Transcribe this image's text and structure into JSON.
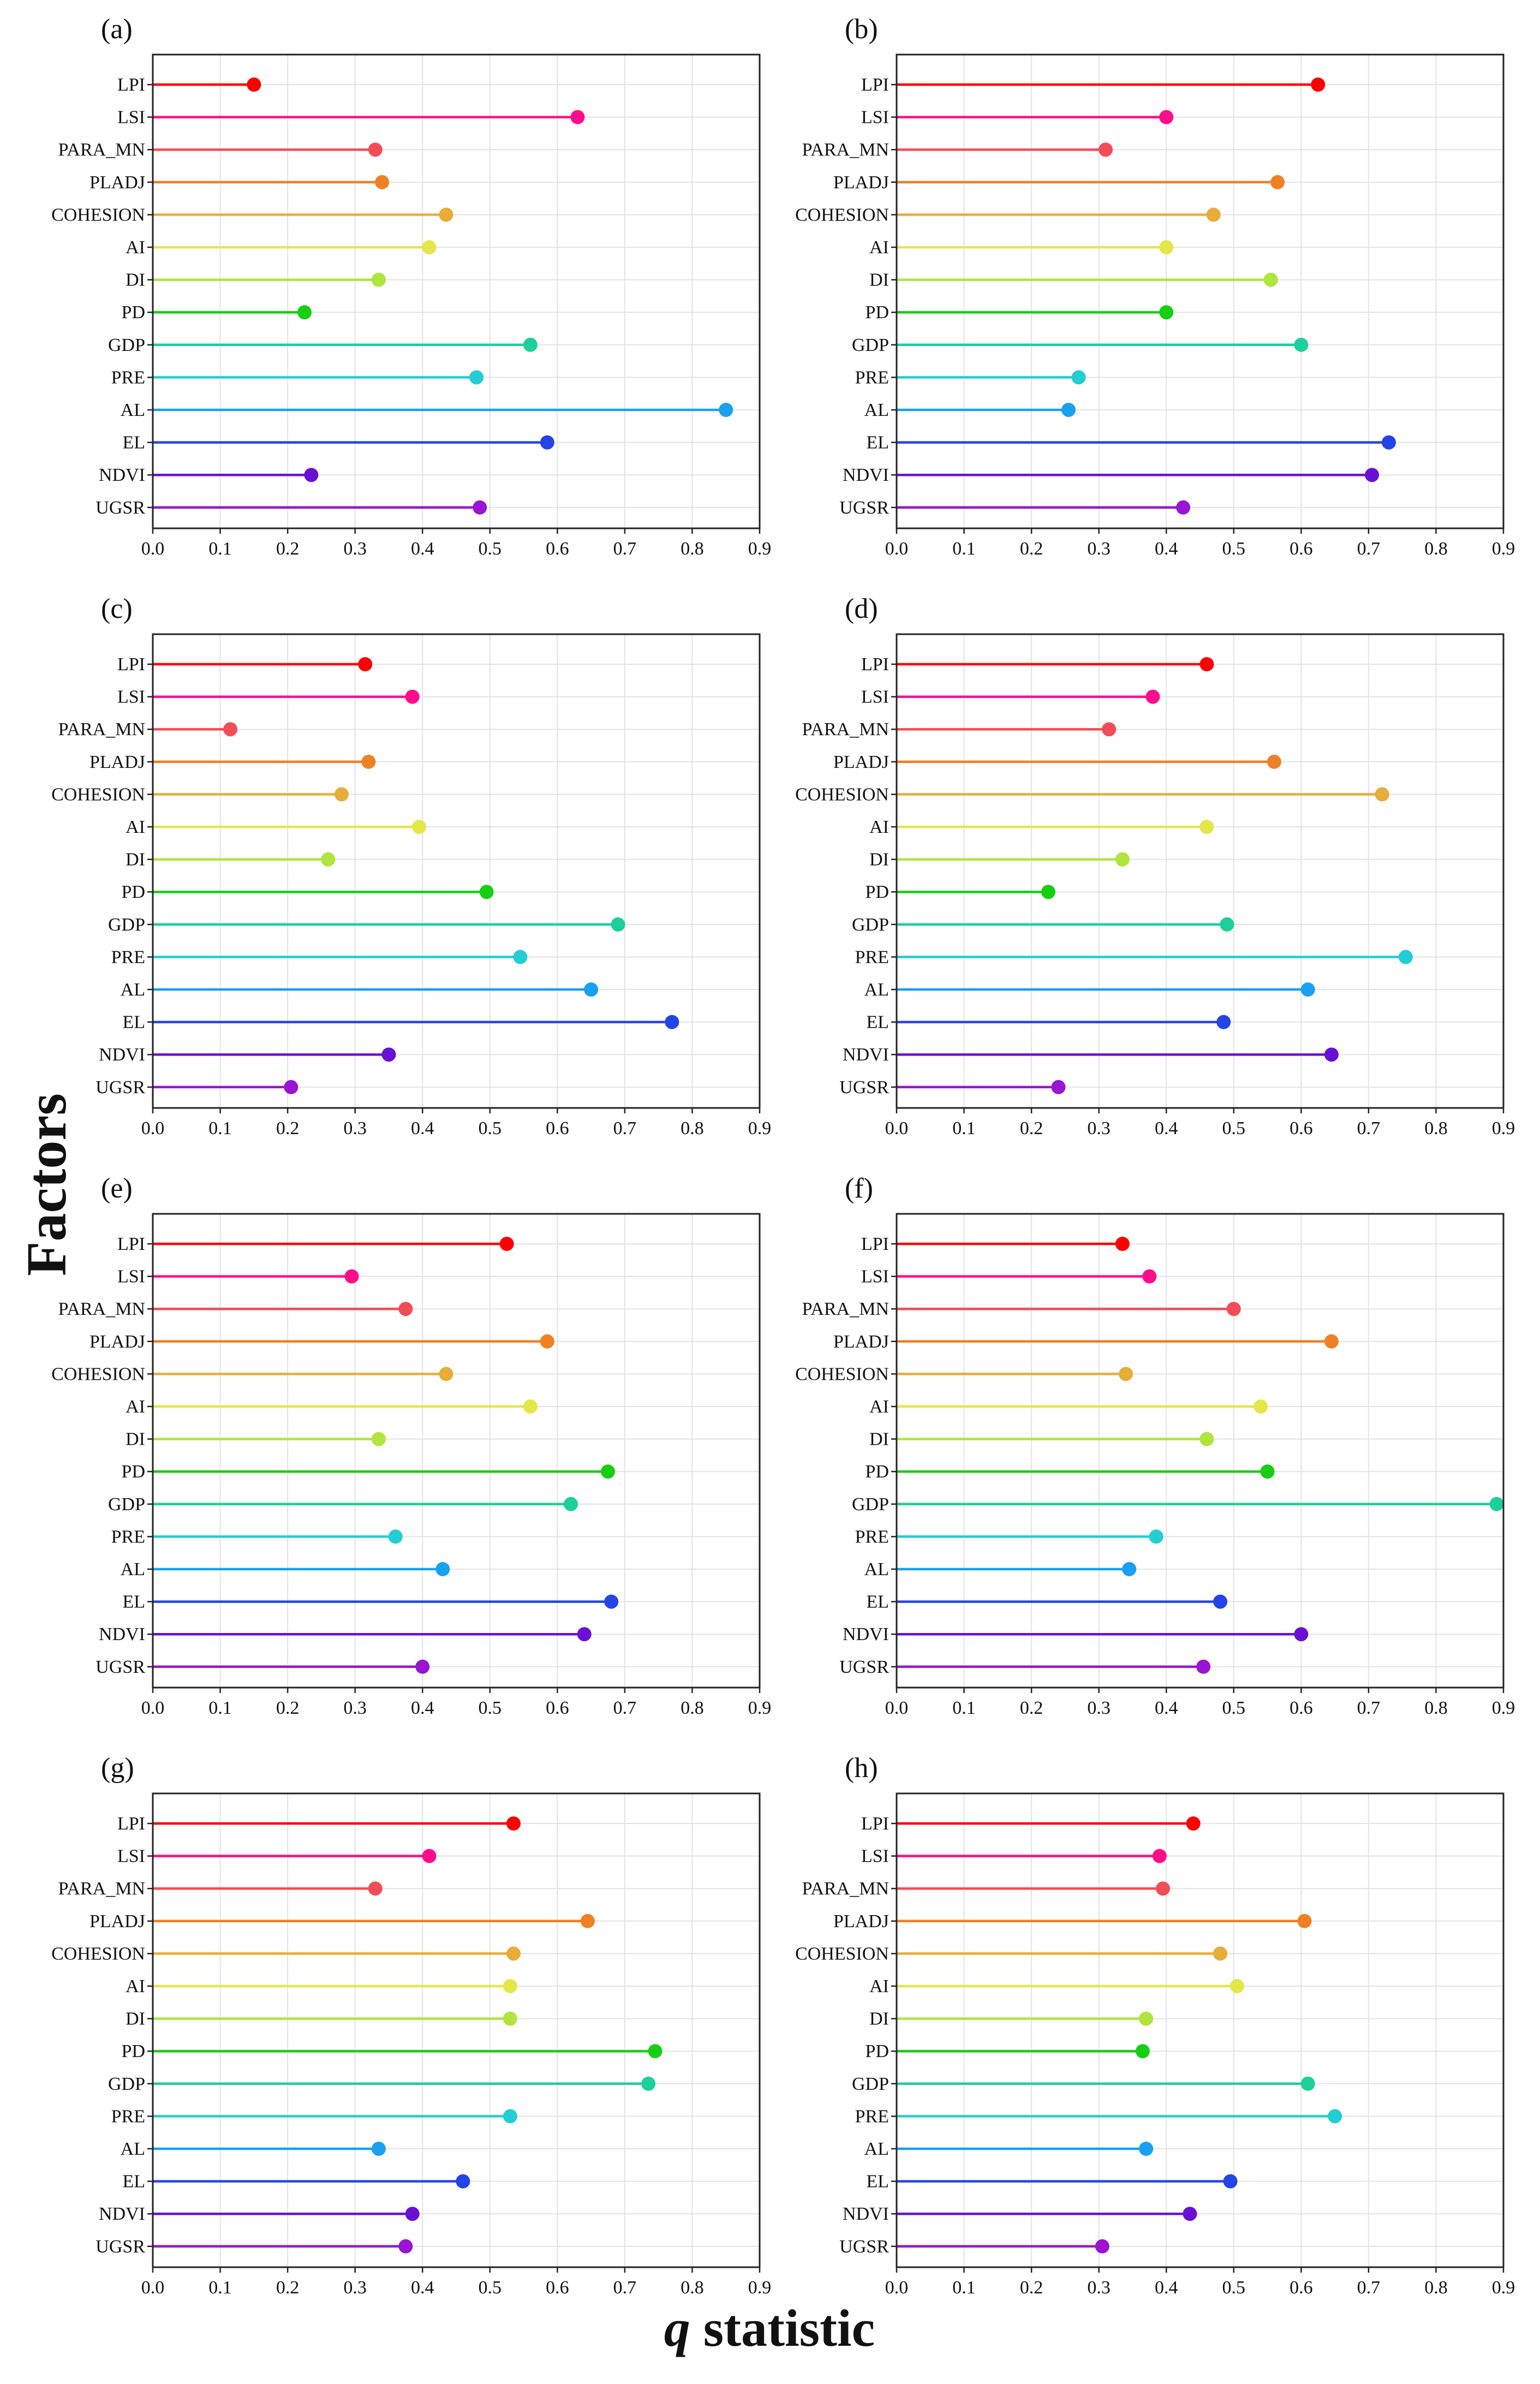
{
  "figure": {
    "ylabel": "Factors",
    "xlabel_italic": "q",
    "xlabel_rest": " statistic"
  },
  "colors": [
    "#ff0000",
    "#ff0d8a",
    "#f24d57",
    "#ef8125",
    "#e8ad38",
    "#e4e748",
    "#afe53d",
    "#17cf12",
    "#1ccf9b",
    "#23cdd4",
    "#1aa0f0",
    "#2544e8",
    "#6a10d6",
    "#9a14d3"
  ],
  "chart_data": [
    {
      "type": "lollipop",
      "title": "(a)",
      "categories": [
        "LPI",
        "LSI",
        "PARA_MN",
        "PLADJ",
        "COHESION",
        "AI",
        "DI",
        "PD",
        "GDP",
        "PRE",
        "AL",
        "EL",
        "NDVI",
        "UGSR"
      ],
      "values": [
        0.15,
        0.63,
        0.33,
        0.34,
        0.435,
        0.41,
        0.335,
        0.225,
        0.56,
        0.48,
        0.85,
        0.585,
        0.235,
        0.485
      ],
      "xlim": [
        0.0,
        0.9
      ],
      "xticks": [
        "0.0",
        "0.1",
        "0.2",
        "0.3",
        "0.4",
        "0.5",
        "0.6",
        "0.7",
        "0.8",
        "0.9"
      ],
      "grid": true
    },
    {
      "type": "lollipop",
      "title": "(b)",
      "categories": [
        "LPI",
        "LSI",
        "PARA_MN",
        "PLADJ",
        "COHESION",
        "AI",
        "DI",
        "PD",
        "GDP",
        "PRE",
        "AL",
        "EL",
        "NDVI",
        "UGSR"
      ],
      "values": [
        0.625,
        0.4,
        0.31,
        0.565,
        0.47,
        0.4,
        0.555,
        0.4,
        0.6,
        0.27,
        0.255,
        0.73,
        0.705,
        0.425
      ],
      "xlim": [
        0.0,
        0.9
      ],
      "xticks": [
        "0.0",
        "0.1",
        "0.2",
        "0.3",
        "0.4",
        "0.5",
        "0.6",
        "0.7",
        "0.8",
        "0.9"
      ],
      "grid": true
    },
    {
      "type": "lollipop",
      "title": "(c)",
      "categories": [
        "LPI",
        "LSI",
        "PARA_MN",
        "PLADJ",
        "COHESION",
        "AI",
        "DI",
        "PD",
        "GDP",
        "PRE",
        "AL",
        "EL",
        "NDVI",
        "UGSR"
      ],
      "values": [
        0.315,
        0.385,
        0.115,
        0.32,
        0.28,
        0.395,
        0.26,
        0.495,
        0.69,
        0.545,
        0.65,
        0.77,
        0.35,
        0.205
      ],
      "xlim": [
        0.0,
        0.9
      ],
      "xticks": [
        "0.0",
        "0.1",
        "0.2",
        "0.3",
        "0.4",
        "0.5",
        "0.6",
        "0.7",
        "0.8",
        "0.9"
      ],
      "grid": true
    },
    {
      "type": "lollipop",
      "title": "(d)",
      "categories": [
        "LPI",
        "LSI",
        "PARA_MN",
        "PLADJ",
        "COHESION",
        "AI",
        "DI",
        "PD",
        "GDP",
        "PRE",
        "AL",
        "EL",
        "NDVI",
        "UGSR"
      ],
      "values": [
        0.46,
        0.38,
        0.315,
        0.56,
        0.72,
        0.46,
        0.335,
        0.225,
        0.49,
        0.755,
        0.61,
        0.485,
        0.645,
        0.24
      ],
      "xlim": [
        0.0,
        0.9
      ],
      "xticks": [
        "0.0",
        "0.1",
        "0.2",
        "0.3",
        "0.4",
        "0.5",
        "0.6",
        "0.7",
        "0.8",
        "0.9"
      ],
      "grid": true
    },
    {
      "type": "lollipop",
      "title": "(e)",
      "categories": [
        "LPI",
        "LSI",
        "PARA_MN",
        "PLADJ",
        "COHESION",
        "AI",
        "DI",
        "PD",
        "GDP",
        "PRE",
        "AL",
        "EL",
        "NDVI",
        "UGSR"
      ],
      "values": [
        0.525,
        0.295,
        0.375,
        0.585,
        0.435,
        0.56,
        0.335,
        0.675,
        0.62,
        0.36,
        0.43,
        0.68,
        0.64,
        0.4
      ],
      "xlim": [
        0.0,
        0.9
      ],
      "xticks": [
        "0.0",
        "0.1",
        "0.2",
        "0.3",
        "0.4",
        "0.5",
        "0.6",
        "0.7",
        "0.8",
        "0.9"
      ],
      "grid": true
    },
    {
      "type": "lollipop",
      "title": "(f)",
      "categories": [
        "LPI",
        "LSI",
        "PARA_MN",
        "PLADJ",
        "COHESION",
        "AI",
        "DI",
        "PD",
        "GDP",
        "PRE",
        "AL",
        "EL",
        "NDVI",
        "UGSR"
      ],
      "values": [
        0.335,
        0.375,
        0.5,
        0.645,
        0.34,
        0.54,
        0.46,
        0.55,
        0.89,
        0.385,
        0.345,
        0.48,
        0.6,
        0.455
      ],
      "xlim": [
        0.0,
        0.9
      ],
      "xticks": [
        "0.0",
        "0.1",
        "0.2",
        "0.3",
        "0.4",
        "0.5",
        "0.6",
        "0.7",
        "0.8",
        "0.9"
      ],
      "grid": true
    },
    {
      "type": "lollipop",
      "title": "(g)",
      "categories": [
        "LPI",
        "LSI",
        "PARA_MN",
        "PLADJ",
        "COHESION",
        "AI",
        "DI",
        "PD",
        "GDP",
        "PRE",
        "AL",
        "EL",
        "NDVI",
        "UGSR"
      ],
      "values": [
        0.535,
        0.41,
        0.33,
        0.645,
        0.535,
        0.53,
        0.53,
        0.745,
        0.735,
        0.53,
        0.335,
        0.46,
        0.385,
        0.375
      ],
      "xlim": [
        0.0,
        0.9
      ],
      "xticks": [
        "0.0",
        "0.1",
        "0.2",
        "0.3",
        "0.4",
        "0.5",
        "0.6",
        "0.7",
        "0.8",
        "0.9"
      ],
      "grid": true
    },
    {
      "type": "lollipop",
      "title": "(h)",
      "categories": [
        "LPI",
        "LSI",
        "PARA_MN",
        "PLADJ",
        "COHESION",
        "AI",
        "DI",
        "PD",
        "GDP",
        "PRE",
        "AL",
        "EL",
        "NDVI",
        "UGSR"
      ],
      "values": [
        0.44,
        0.39,
        0.395,
        0.605,
        0.48,
        0.505,
        0.37,
        0.365,
        0.61,
        0.65,
        0.37,
        0.495,
        0.435,
        0.305
      ],
      "xlim": [
        0.0,
        0.9
      ],
      "xticks": [
        "0.0",
        "0.1",
        "0.2",
        "0.3",
        "0.4",
        "0.5",
        "0.6",
        "0.7",
        "0.8",
        "0.9"
      ],
      "grid": true
    }
  ]
}
